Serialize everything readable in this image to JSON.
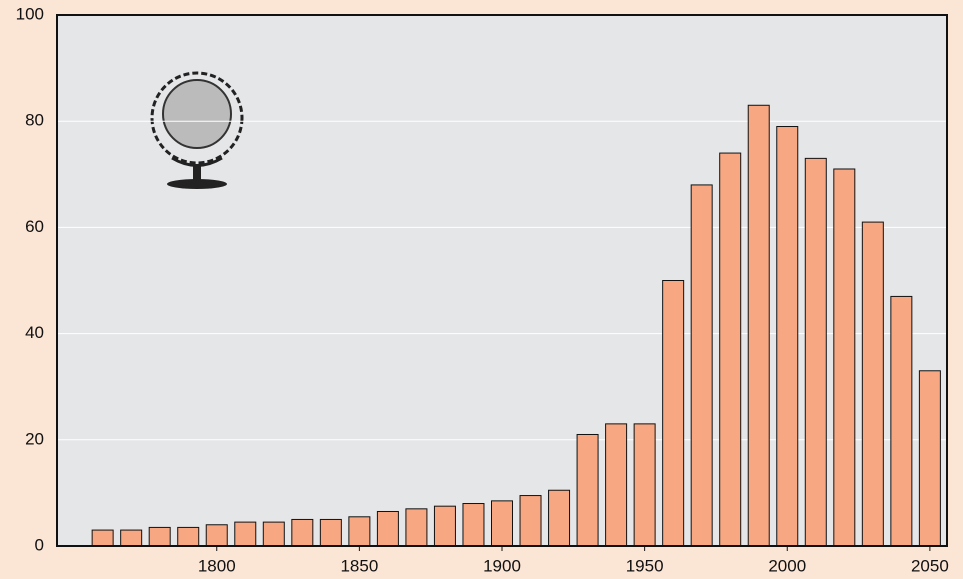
{
  "chart_data": {
    "type": "bar",
    "x": [
      1760,
      1770,
      1780,
      1790,
      1800,
      1810,
      1820,
      1830,
      1840,
      1850,
      1860,
      1870,
      1880,
      1890,
      1900,
      1910,
      1920,
      1930,
      1940,
      1950,
      1960,
      1970,
      1980,
      1990,
      2000,
      2010,
      2020,
      2030,
      2040,
      2050
    ],
    "values": [
      3,
      3,
      3.5,
      3.5,
      4,
      4.5,
      4.5,
      5,
      5,
      5.5,
      6.5,
      7,
      7.5,
      8,
      8.5,
      9.5,
      10.5,
      21,
      23,
      23,
      50,
      68,
      74,
      83,
      79,
      73,
      71,
      61,
      47,
      33
    ],
    "color": "#f7a782",
    "xlim": [
      1744,
      2056
    ],
    "xticks": [
      1800,
      1850,
      1900,
      1950,
      2000,
      2050
    ],
    "ylim": [
      0,
      100
    ],
    "yticks": [
      0,
      20,
      40,
      60,
      80,
      100
    ],
    "grid": true
  }
}
